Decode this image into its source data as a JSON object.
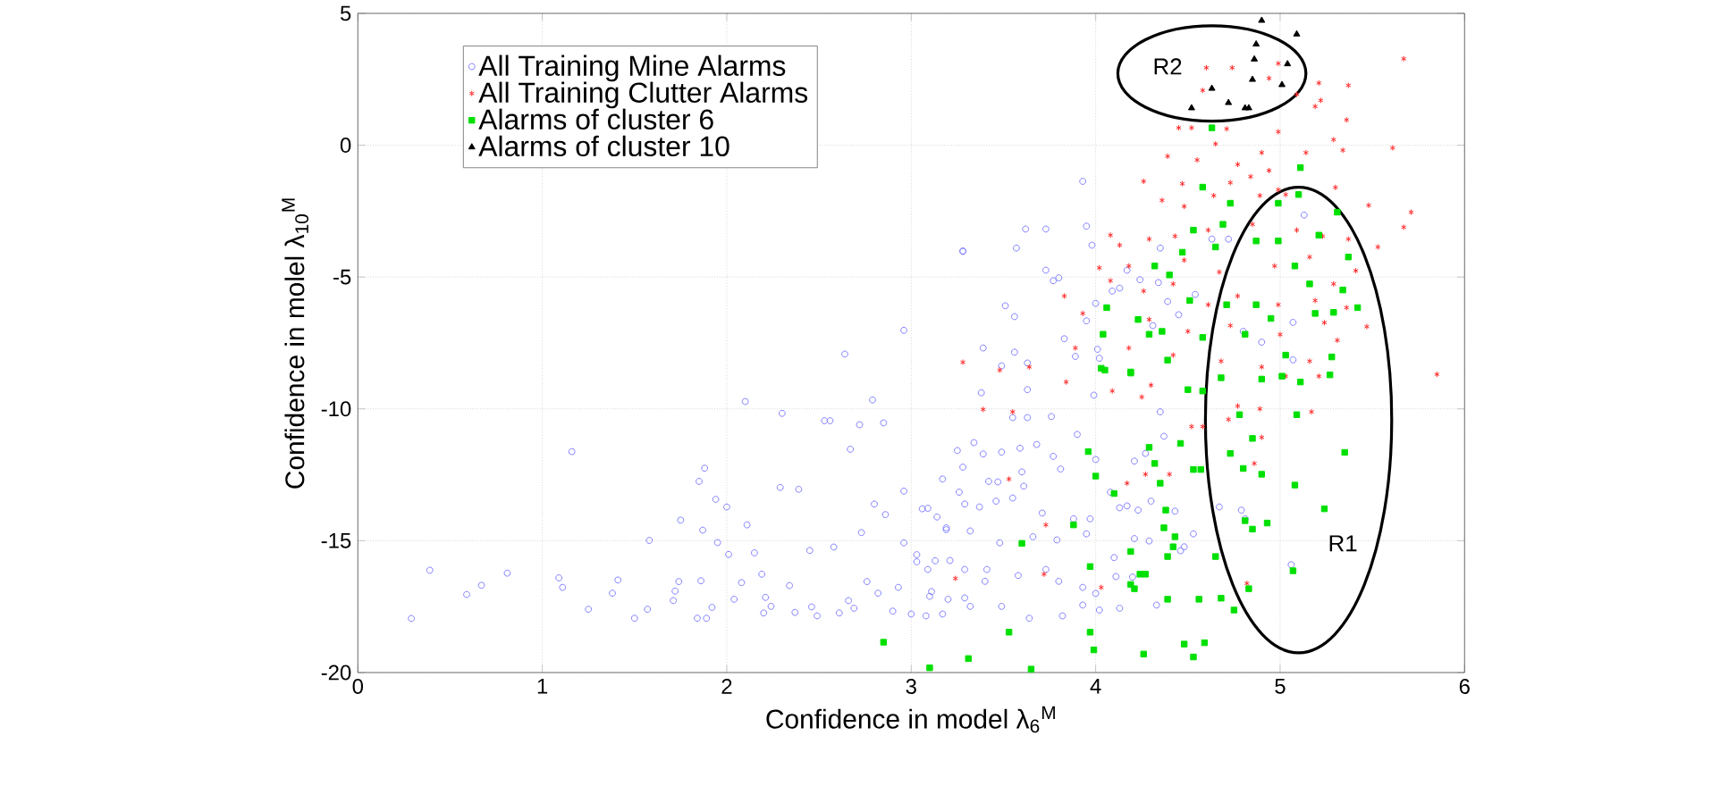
{
  "chart_data": {
    "type": "scatter",
    "xlabel": "Confidence in model λ$_{6}$$^{M}$",
    "ylabel": "Confidence in molel λ$_{10}$$^{M}$",
    "xlim": [
      0,
      6
    ],
    "ylim": [
      -20,
      5
    ],
    "xticks": [
      0,
      1,
      2,
      3,
      4,
      5,
      6
    ],
    "yticks": [
      -20,
      -15,
      -10,
      -5,
      0,
      5
    ],
    "grid": true,
    "legend": "top left",
    "annotations": [
      "R1",
      "R2"
    ],
    "series": [
      {
        "name": "All Training Mine Alarms",
        "color": "#7f7fff",
        "marker": "circle",
        "x": [
          0.29,
          0.39,
          0.59,
          0.67,
          0.81,
          1.09,
          1.11,
          1.16,
          1.25,
          1.38,
          1.41,
          1.5,
          1.57,
          1.58,
          1.71,
          1.72,
          1.74,
          1.75,
          1.84,
          1.85,
          1.86,
          1.87,
          1.88,
          1.89,
          1.92,
          1.94,
          1.95,
          2.0,
          2.01,
          2.04,
          2.08,
          2.1,
          2.11,
          2.15,
          2.19,
          2.2,
          2.21,
          2.24,
          2.29,
          2.3,
          2.34,
          2.37,
          2.39,
          2.46,
          2.45,
          2.49,
          2.53,
          2.56,
          2.58,
          2.61,
          2.64,
          2.66,
          2.67,
          2.69,
          2.72,
          2.73,
          2.76,
          2.79,
          2.8,
          2.82,
          2.85,
          2.86,
          2.9,
          2.93,
          2.96,
          2.96,
          2.96,
          3.0,
          3.03,
          3.06,
          3.09,
          3.1,
          3.14,
          3.17,
          3.17,
          3.19,
          3.21,
          3.25,
          3.28,
          3.28,
          3.29,
          3.34,
          3.38,
          3.39,
          3.41,
          3.56,
          3.49,
          3.63,
          3.89,
          4.01,
          4.02,
          3.99,
          3.63,
          3.55,
          3.63,
          3.76,
          3.39,
          3.49,
          3.59,
          3.68,
          3.77,
          3.9,
          4.0,
          4.21,
          4.27,
          4.37,
          4.35,
          3.42,
          3.47,
          3.6,
          3.81,
          3.61,
          3.26,
          3.29,
          3.37,
          3.46,
          3.55,
          3.71,
          3.88,
          3.97,
          4.08,
          4.13,
          4.17,
          4.23,
          4.3,
          4.43,
          4.53,
          3.09,
          3.19,
          3.32,
          3.48,
          3.66,
          3.79,
          3.95,
          4.1,
          4.21,
          4.29,
          4.46,
          4.48,
          3.03,
          3.13,
          3.29,
          3.4,
          3.58,
          3.73,
          3.8,
          3.93,
          4.0,
          4.11,
          4.2,
          3.11,
          3.2,
          3.32,
          3.49,
          3.64,
          3.82,
          3.93,
          4.02,
          4.13,
          4.33,
          3.08,
          4.79,
          5.06,
          5.07,
          4.67,
          4.81,
          3.93,
          3.28,
          3.57,
          3.62,
          3.73,
          3.95,
          3.98,
          3.73,
          3.77,
          3.8,
          3.51,
          3.56,
          3.95,
          3.83,
          4.17,
          4.13,
          4.09,
          4.0,
          4.35,
          4.24,
          4.34,
          4.39,
          4.45,
          4.63,
          4.72,
          4.54,
          4.8,
          4.9,
          5.13,
          5.07,
          4.31
        ],
        "values": [
          -17.95,
          -16.12,
          -17.04,
          -16.69,
          -16.23,
          -16.41,
          -16.77,
          -11.62,
          -17.6,
          -16.99,
          -16.49,
          -17.94,
          -17.6,
          -14.99,
          -17.27,
          -16.91,
          -16.55,
          -14.22,
          -17.94,
          -12.75,
          -16.52,
          -14.6,
          -12.25,
          -17.94,
          -17.53,
          -13.43,
          -15.07,
          -13.72,
          -15.52,
          -17.22,
          -16.59,
          -9.72,
          -14.4,
          -15.46,
          -16.27,
          -17.74,
          -17.15,
          -17.49,
          -12.98,
          -10.17,
          -16.7,
          -17.72,
          -13.05,
          -17.51,
          -15.37,
          -17.85,
          -10.45,
          -10.45,
          -15.24,
          -17.74,
          -7.92,
          -17.27,
          -11.53,
          -17.56,
          -10.6,
          -14.69,
          -16.55,
          -9.66,
          -13.61,
          -16.99,
          -10.53,
          -14.01,
          -17.67,
          -16.77,
          -13.12,
          -7.02,
          -15.08,
          -17.78,
          -15.8,
          -13.79,
          -16.09,
          -17.11,
          -14.1,
          -17.78,
          -12.66,
          -14.51,
          -15.75,
          -11.58,
          -4.03,
          -12.21,
          -17.17,
          -11.28,
          -9.39,
          -7.69,
          -16.09,
          -7.85,
          -8.37,
          -8.26,
          -8.01,
          -7.74,
          -8.08,
          -9.48,
          -9.27,
          -10.33,
          -10.33,
          -10.29,
          -11.71,
          -11.64,
          -11.49,
          -11.35,
          -11.8,
          -10.97,
          -11.92,
          -11.98,
          -11.69,
          -11.04,
          -10.11,
          -12.75,
          -12.77,
          -12.39,
          -12.28,
          -12.93,
          -13.16,
          -13.61,
          -13.72,
          -13.5,
          -13.38,
          -13.95,
          -14.17,
          -14.17,
          -13.16,
          -13.75,
          -13.68,
          -13.84,
          -13.5,
          -13.88,
          -14.74,
          -13.77,
          -14.58,
          -14.63,
          -15.08,
          -14.85,
          -14.97,
          -14.74,
          -15.64,
          -14.92,
          -15.01,
          -15.38,
          -15.23,
          -15.53,
          -15.76,
          -16.09,
          -16.54,
          -16.32,
          -16.09,
          -16.54,
          -16.77,
          -17.0,
          -16.36,
          -16.38,
          -16.93,
          -17.22,
          -17.49,
          -17.49,
          -17.94,
          -17.85,
          -17.44,
          -17.63,
          -17.56,
          -17.44,
          -17.85,
          -13.84,
          -15.91,
          -8.14,
          -13.72,
          -14.17,
          -1.37,
          -4.01,
          -3.9,
          -3.18,
          -3.18,
          -3.07,
          -3.79,
          -4.74,
          -5.14,
          -5.03,
          -6.09,
          -6.5,
          -6.66,
          -7.34,
          -4.74,
          -5.42,
          -5.53,
          -6.0,
          -3.9,
          -5.1,
          -5.21,
          -5.93,
          -6.43,
          -3.56,
          -3.56,
          -5.66,
          -7.06,
          -7.47,
          -2.65,
          -6.72,
          -6.84
        ]
      },
      {
        "name": "All Training Clutter Alarms",
        "color": "#ff2a2a",
        "marker": "cross",
        "x": [
          3.28,
          3.39,
          3.24,
          3.48,
          3.64,
          3.84,
          3.89,
          4.09,
          4.18,
          4.25,
          4.3,
          3.55,
          3.53,
          3.73,
          3.72,
          4.03,
          4.17,
          4.27,
          4.4,
          4.52,
          4.58,
          4.72,
          4.77,
          4.9,
          4.86,
          4.89,
          4.82,
          5.03,
          5.17,
          5.21,
          5.31,
          5.85,
          5.67,
          4.6,
          4.74,
          4.99,
          4.94,
          5.21,
          5.37,
          4.58,
          5.09,
          5.22,
          5.19,
          4.45,
          4.52,
          4.71,
          4.99,
          5.36,
          5.29,
          5.61,
          5.34,
          5.14,
          4.39,
          4.55,
          4.65,
          4.9,
          4.77,
          4.94,
          4.26,
          4.47,
          4.73,
          4.84,
          4.99,
          5.3,
          4.36,
          4.48,
          4.64,
          4.89,
          5.03,
          5.48,
          5.71,
          5.67,
          5.37,
          4.08,
          4.13,
          4.29,
          4.43,
          4.61,
          4.85,
          5.09,
          5.23,
          5.53,
          4.02,
          4.18,
          4.48,
          4.67,
          4.97,
          5.16,
          5.41,
          5.29,
          3.83,
          4.08,
          4.26,
          4.42,
          4.61,
          4.77,
          4.99,
          5.19,
          5.36,
          3.93,
          4.29,
          4.5,
          4.73,
          5.0,
          5.24,
          5.47,
          4.42,
          4.68,
          4.9,
          5.16
        ],
        "values": [
          -8.23,
          -10.02,
          -16.43,
          -8.53,
          -8.41,
          -8.98,
          -7.69,
          -9.32,
          -7.69,
          -9.55,
          -9.1,
          -10.11,
          -12.66,
          -14.4,
          -16.27,
          -16.77,
          -12.82,
          -12.48,
          -12.48,
          -10.67,
          -10.67,
          -10.4,
          -9.89,
          -11.08,
          -12.07,
          -10.0,
          -16.62,
          -8.76,
          -10.11,
          -8.76,
          -7.4,
          -8.69,
          3.28,
          2.94,
          2.94,
          3.1,
          2.54,
          2.36,
          2.27,
          2.08,
          1.93,
          1.7,
          1.47,
          0.66,
          0.66,
          0.62,
          0.51,
          0.96,
          0.21,
          -0.1,
          -0.19,
          -0.28,
          -0.42,
          -0.56,
          0.05,
          -0.28,
          -0.73,
          -0.96,
          -1.37,
          -1.46,
          -1.42,
          -1.19,
          -1.69,
          -1.6,
          -2.09,
          -2.32,
          -1.91,
          -1.91,
          -1.87,
          -2.28,
          -2.54,
          -3.11,
          -3.56,
          -3.41,
          -3.79,
          -3.56,
          -3.45,
          -3.22,
          -3.0,
          -3.22,
          -3.45,
          -3.86,
          -4.65,
          -4.58,
          -4.36,
          -4.81,
          -4.58,
          -4.24,
          -4.76,
          -5.26,
          -5.72,
          -5.14,
          -5.53,
          -5.26,
          -6.05,
          -5.72,
          -6.05,
          -5.89,
          -6.16,
          -6.38,
          -6.61,
          -7.06,
          -6.84,
          -7.18,
          -6.73,
          -6.88,
          -7.96,
          -8.19,
          -8.41,
          -8.19
        ]
      },
      {
        "name": "Alarms of cluster 6",
        "color": "#00e000",
        "marker": "square",
        "x": [
          2.85,
          3.1,
          3.31,
          3.53,
          3.65,
          3.6,
          3.88,
          3.97,
          3.96,
          4.0,
          4.1,
          3.97,
          3.99,
          4.05,
          4.19,
          4.19,
          4.19,
          4.24,
          4.27,
          4.26,
          4.21,
          4.29,
          4.32,
          4.35,
          4.38,
          4.37,
          4.39,
          4.43,
          4.42,
          4.39,
          4.46,
          4.48,
          4.53,
          4.53,
          4.56,
          4.59,
          4.57,
          4.58,
          4.65,
          4.68,
          4.75,
          4.73,
          4.78,
          4.8,
          4.85,
          4.9,
          4.81,
          4.85,
          4.83,
          4.93,
          5.08,
          5.09,
          5.07,
          5.24,
          5.35,
          5.28,
          5.27,
          5.11,
          5.01,
          4.9,
          4.68,
          4.5,
          4.63,
          5.11,
          4.58,
          4.73,
          4.99,
          5.1,
          4.53,
          4.69,
          5.31,
          5.21,
          4.47,
          4.65,
          4.87,
          4.99,
          4.32,
          4.4,
          5.08,
          5.37,
          5.16,
          5.34,
          4.06,
          4.23,
          4.36,
          4.51,
          4.71,
          4.87,
          4.95,
          5.19,
          5.29,
          5.42,
          4.04,
          4.29,
          4.39,
          4.58,
          4.81,
          5.03,
          4.03,
          4.19
        ],
        "values": [
          -18.85,
          -19.82,
          -19.47,
          -18.47,
          -19.87,
          -15.1,
          -14.4,
          -15.98,
          -11.62,
          -12.55,
          -13.21,
          -18.47,
          -19.14,
          -8.53,
          -8.6,
          -15.41,
          -16.66,
          -16.27,
          -16.27,
          -19.3,
          -16.82,
          -11.46,
          -12.07,
          -12.82,
          -13.84,
          -14.51,
          -15.6,
          -14.85,
          -15.23,
          -17.22,
          -11.31,
          -18.92,
          -19.41,
          -12.3,
          -17.22,
          -18.87,
          -12.3,
          -9.32,
          -15.6,
          -17.18,
          -17.63,
          -11.69,
          -10.22,
          -12.26,
          -11.12,
          -12.48,
          -14.24,
          -14.56,
          -16.82,
          -14.33,
          -12.89,
          -10.22,
          -16.14,
          -13.79,
          -11.65,
          -8.03,
          -8.71,
          -8.98,
          -8.76,
          -8.87,
          -8.82,
          -9.27,
          0.66,
          -0.85,
          -1.59,
          -2.2,
          -2.2,
          -1.87,
          -3.22,
          -3.0,
          -2.54,
          -3.41,
          -4.06,
          -3.86,
          -3.63,
          -3.63,
          -4.58,
          -4.92,
          -4.58,
          -4.24,
          -5.26,
          -5.49,
          -6.16,
          -6.61,
          -7.06,
          -5.89,
          -6.05,
          -6.05,
          -6.57,
          -6.38,
          -6.34,
          -6.16,
          -7.17,
          -7.17,
          -8.15,
          -7.29,
          -7.17,
          -7.96,
          -8.46,
          -8.64
        ]
      },
      {
        "name": "Alarms of cluster 10",
        "color": "#000000",
        "marker": "triangle",
        "x": [
          4.9,
          5.09,
          4.87,
          4.86,
          5.04,
          4.85,
          5.01,
          4.63,
          4.72,
          4.52,
          4.81,
          4.83
        ],
        "values": [
          4.73,
          4.21,
          3.83,
          3.26,
          3.08,
          2.49,
          2.29,
          2.15,
          1.61,
          1.41,
          1.41,
          1.41
        ]
      }
    ]
  }
}
